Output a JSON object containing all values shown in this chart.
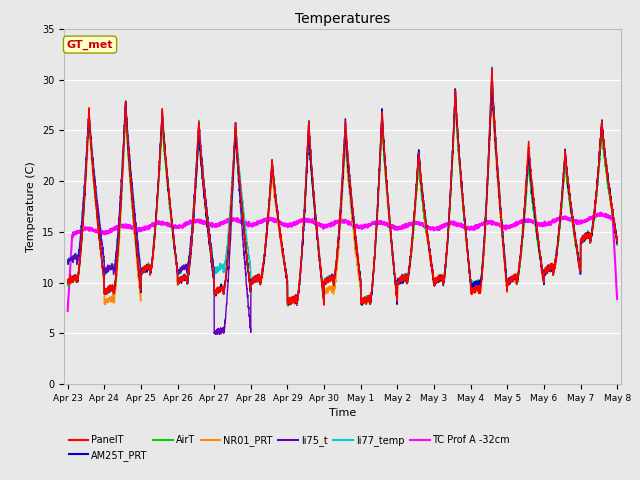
{
  "title": "Temperatures",
  "xlabel": "Time",
  "ylabel": "Temperature (C)",
  "ylim": [
    0,
    35
  ],
  "background_color": "#e8e8e8",
  "plot_bg_color": "#e8e8e8",
  "annotation_text": "GT_met",
  "annotation_color": "#cc0000",
  "annotation_bg": "#ffffcc",
  "annotation_border": "#999900",
  "series_order": [
    "PanelT",
    "AM25T_PRT",
    "AirT",
    "NR01_PRT",
    "li75_t",
    "li77_temp",
    "TC Prof A -32cm"
  ],
  "series": {
    "PanelT": {
      "color": "#ff0000",
      "lw": 1.0
    },
    "AM25T_PRT": {
      "color": "#0000cc",
      "lw": 1.0
    },
    "AirT": {
      "color": "#00cc00",
      "lw": 1.0
    },
    "NR01_PRT": {
      "color": "#ff8800",
      "lw": 1.0
    },
    "li75_t": {
      "color": "#6600bb",
      "lw": 1.0
    },
    "li77_temp": {
      "color": "#00cccc",
      "lw": 1.0
    },
    "TC Prof A -32cm": {
      "color": "#ff00ff",
      "lw": 1.5
    }
  },
  "x_tick_labels": [
    "Apr 23",
    "Apr 24",
    "Apr 25",
    "Apr 26",
    "Apr 27",
    "Apr 28",
    "Apr 29",
    "Apr 30",
    "May 1",
    "May 2",
    "May 3",
    "May 4",
    "May 5",
    "May 6",
    "May 7",
    "May 8"
  ],
  "x_tick_positions": [
    0,
    1,
    2,
    3,
    4,
    5,
    6,
    7,
    8,
    9,
    10,
    11,
    12,
    13,
    14,
    15
  ],
  "n_points_per_day": 288,
  "num_days": 15,
  "yticks": [
    0,
    5,
    10,
    15,
    20,
    25,
    30,
    35
  ]
}
